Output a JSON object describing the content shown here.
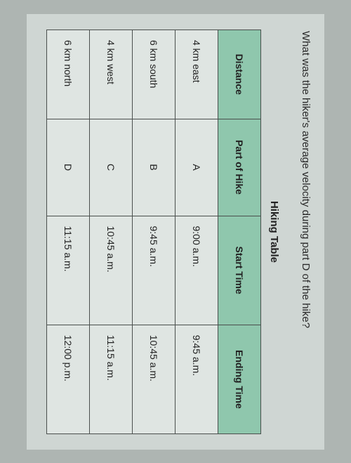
{
  "question": "What was the hiker's average velocity during part D of the hike?",
  "table": {
    "title": "Hiking Table",
    "columns": [
      "Distance",
      "Part of Hike",
      "Start Time",
      "Ending Time"
    ],
    "header_bg": "#8fc7ad",
    "cell_bg": "#dfe5e2",
    "border_color": "#4a4f4d",
    "rows": [
      {
        "distance": "4 km east",
        "part": "A",
        "start": "9:00 a.m.",
        "end": "9:45 a.m."
      },
      {
        "distance": "6 km south",
        "part": "B",
        "start": "9:45 a.m.",
        "end": "10:45 a.m."
      },
      {
        "distance": "4 km west",
        "part": "C",
        "start": "10:45 a.m.",
        "end": "11:15 a.m."
      },
      {
        "distance": "6 km north",
        "part": "D",
        "start": "11:15 a.m.",
        "end": "12:00 p.m."
      }
    ]
  }
}
